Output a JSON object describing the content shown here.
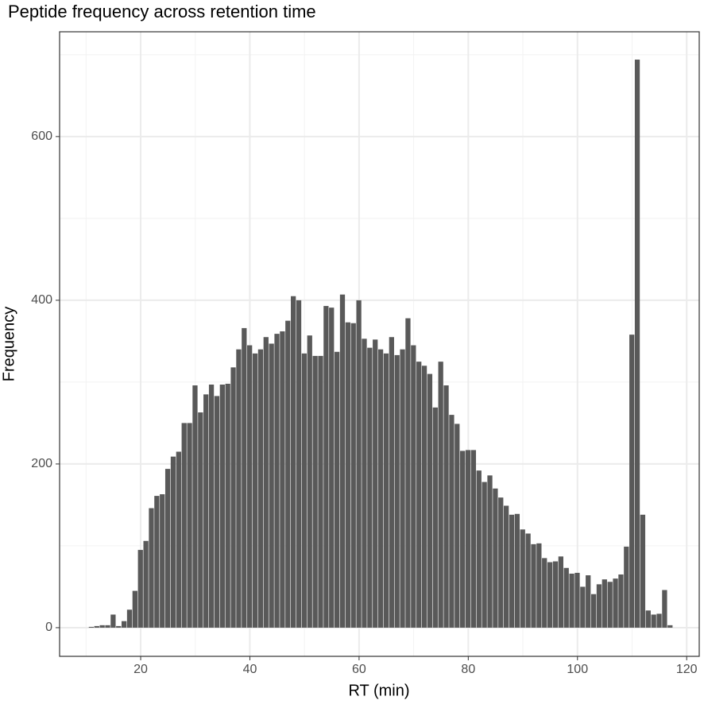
{
  "chart_data": {
    "type": "histogram",
    "title": "Peptide frequency across retention time",
    "x_label": "RT (min)",
    "y_label": "Frequency",
    "color": "#595959",
    "bins": [
      10.5,
      11.5,
      12.5,
      13.5,
      14.5,
      15.5,
      16.5,
      17.5,
      18.5,
      19.5,
      20.5,
      21.5,
      22.5,
      23.5,
      24.5,
      25.5,
      26.5,
      27.5,
      28.5,
      29.5,
      30.5,
      31.5,
      32.5,
      33.5,
      34.5,
      35.5,
      36.5,
      37.5,
      38.5,
      39.5,
      40.5,
      41.5,
      42.5,
      43.5,
      44.5,
      45.5,
      46.5,
      47.5,
      48.5,
      49.5,
      50.5,
      51.5,
      52.5,
      53.5,
      54.5,
      55.5,
      56.5,
      57.5,
      58.5,
      59.5,
      60.5,
      61.5,
      62.5,
      63.5,
      64.5,
      65.5,
      66.5,
      67.5,
      68.5,
      69.5,
      70.5,
      71.5,
      72.5,
      73.5,
      74.5,
      75.5,
      76.5,
      77.5,
      78.5,
      79.5,
      80.5,
      81.5,
      82.5,
      83.5,
      84.5,
      85.5,
      86.5,
      87.5,
      88.5,
      89.5,
      90.5,
      91.5,
      92.5,
      93.5,
      94.5,
      95.5,
      96.5,
      97.5,
      98.5,
      99.5,
      100.5,
      101.5,
      102.5,
      103.5,
      104.5,
      105.5,
      106.5,
      107.5,
      108.5,
      109.5,
      110.5,
      111.5,
      112.5,
      113.5,
      114.5,
      115.5,
      116.5,
      117.5
    ],
    "values": [
      1,
      2,
      3,
      3,
      16,
      2,
      8,
      22,
      45,
      95,
      106,
      146,
      161,
      163,
      194,
      209,
      215,
      250,
      250,
      296,
      263,
      285,
      297,
      283,
      297,
      298,
      318,
      340,
      366,
      345,
      335,
      340,
      355,
      347,
      359,
      362,
      375,
      405,
      400,
      335,
      357,
      332,
      332,
      393,
      391,
      337,
      407,
      373,
      372,
      400,
      353,
      342,
      352,
      340,
      335,
      355,
      333,
      340,
      378,
      345,
      325,
      320,
      310,
      269,
      325,
      296,
      260,
      249,
      216,
      217,
      217,
      192,
      178,
      186,
      170,
      159,
      149,
      138,
      139,
      120,
      115,
      102,
      103,
      85,
      80,
      81,
      87,
      73,
      66,
      67,
      50,
      64,
      41,
      53,
      59,
      56,
      60,
      65,
      99,
      358,
      694,
      138,
      21,
      16,
      17,
      46,
      3
    ],
    "xlim": [
      5.15,
      122.3
    ],
    "xticks": [
      20,
      40,
      60,
      80,
      100,
      120
    ],
    "xminor": [
      10,
      30,
      50,
      70,
      90,
      110
    ],
    "ylim": [
      -35,
      728
    ],
    "yticks": [
      0,
      200,
      400,
      600
    ],
    "yminor": [
      100,
      300,
      500,
      700
    ],
    "grid": true
  }
}
